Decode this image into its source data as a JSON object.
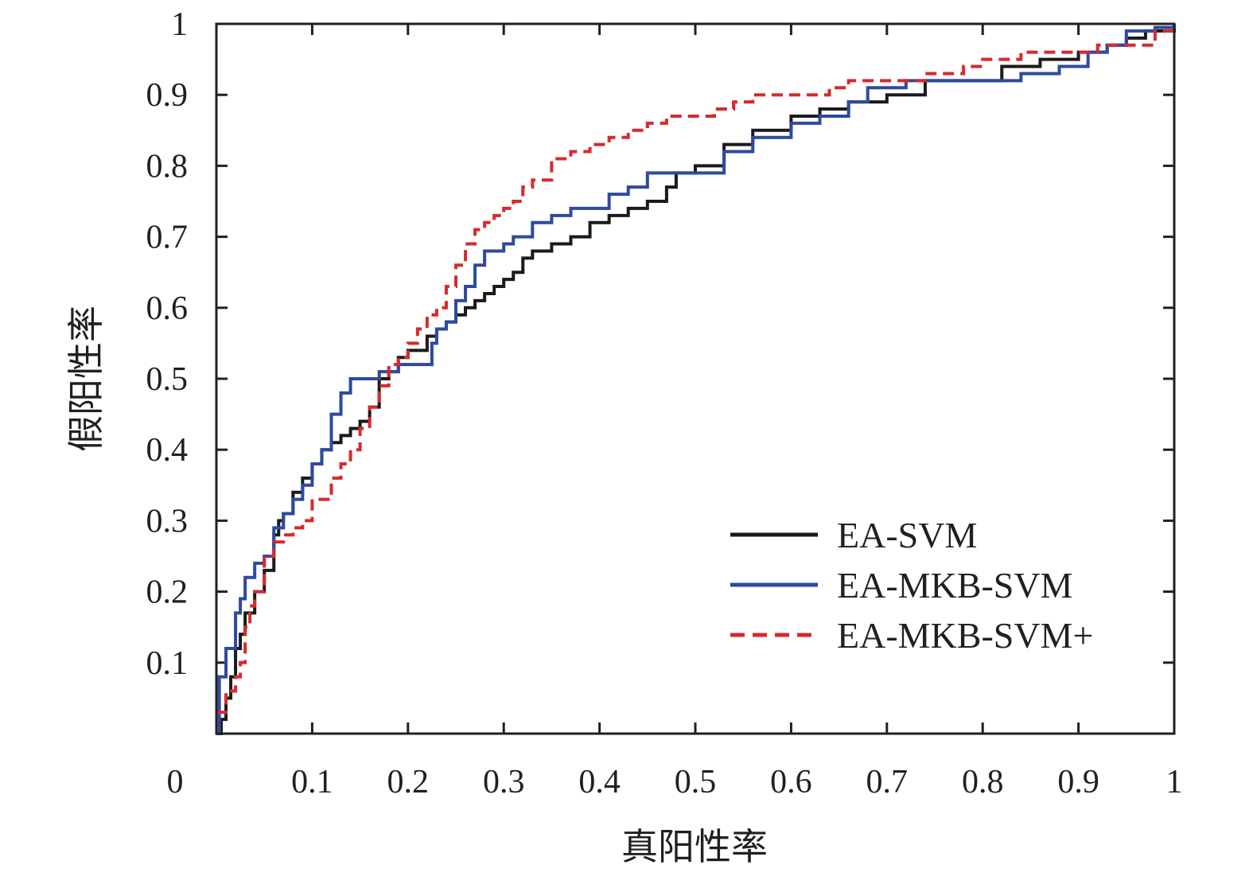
{
  "chart_data": {
    "type": "line",
    "xlabel": "真阳性率",
    "ylabel": "假阳性率",
    "xlim": [
      0,
      1
    ],
    "ylim": [
      0,
      1
    ],
    "x_ticks": [
      "0",
      "0.1",
      "0.2",
      "0.3",
      "0.4",
      "0.5",
      "0.6",
      "0.7",
      "0.8",
      "0.9",
      "1"
    ],
    "y_ticks": [
      "0.1",
      "0.2",
      "0.3",
      "0.4",
      "0.5",
      "0.6",
      "0.7",
      "0.8",
      "0.9",
      "1"
    ],
    "grid": false,
    "legend_position": "bottom-right",
    "series": [
      {
        "name": "EA-SVM",
        "color": "#1a1a1a",
        "dash": "solid",
        "points": [
          [
            0,
            0
          ],
          [
            0.005,
            0.02
          ],
          [
            0.01,
            0.05
          ],
          [
            0.015,
            0.08
          ],
          [
            0.02,
            0.12
          ],
          [
            0.025,
            0.14
          ],
          [
            0.03,
            0.17
          ],
          [
            0.04,
            0.2
          ],
          [
            0.05,
            0.23
          ],
          [
            0.06,
            0.28
          ],
          [
            0.065,
            0.3
          ],
          [
            0.07,
            0.31
          ],
          [
            0.08,
            0.34
          ],
          [
            0.09,
            0.36
          ],
          [
            0.1,
            0.38
          ],
          [
            0.11,
            0.4
          ],
          [
            0.12,
            0.41
          ],
          [
            0.13,
            0.42
          ],
          [
            0.14,
            0.43
          ],
          [
            0.15,
            0.44
          ],
          [
            0.16,
            0.46
          ],
          [
            0.17,
            0.5
          ],
          [
            0.18,
            0.51
          ],
          [
            0.19,
            0.53
          ],
          [
            0.2,
            0.54
          ],
          [
            0.22,
            0.56
          ],
          [
            0.23,
            0.57
          ],
          [
            0.24,
            0.58
          ],
          [
            0.25,
            0.59
          ],
          [
            0.26,
            0.6
          ],
          [
            0.27,
            0.61
          ],
          [
            0.28,
            0.62
          ],
          [
            0.29,
            0.63
          ],
          [
            0.3,
            0.64
          ],
          [
            0.31,
            0.65
          ],
          [
            0.32,
            0.67
          ],
          [
            0.33,
            0.68
          ],
          [
            0.35,
            0.69
          ],
          [
            0.37,
            0.7
          ],
          [
            0.39,
            0.72
          ],
          [
            0.41,
            0.73
          ],
          [
            0.43,
            0.74
          ],
          [
            0.45,
            0.75
          ],
          [
            0.47,
            0.77
          ],
          [
            0.48,
            0.79
          ],
          [
            0.5,
            0.8
          ],
          [
            0.53,
            0.83
          ],
          [
            0.56,
            0.85
          ],
          [
            0.6,
            0.87
          ],
          [
            0.63,
            0.88
          ],
          [
            0.66,
            0.89
          ],
          [
            0.7,
            0.9
          ],
          [
            0.74,
            0.92
          ],
          [
            0.78,
            0.92
          ],
          [
            0.82,
            0.94
          ],
          [
            0.86,
            0.95
          ],
          [
            0.9,
            0.96
          ],
          [
            0.93,
            0.97
          ],
          [
            0.95,
            0.98
          ],
          [
            0.97,
            0.99
          ],
          [
            1.0,
            1.0
          ]
        ]
      },
      {
        "name": "EA-MKB-SVM",
        "color": "#2e4a9e",
        "dash": "solid",
        "points": [
          [
            0,
            0
          ],
          [
            0.003,
            0.08
          ],
          [
            0.01,
            0.12
          ],
          [
            0.02,
            0.17
          ],
          [
            0.025,
            0.19
          ],
          [
            0.03,
            0.22
          ],
          [
            0.04,
            0.24
          ],
          [
            0.05,
            0.25
          ],
          [
            0.06,
            0.29
          ],
          [
            0.07,
            0.31
          ],
          [
            0.08,
            0.33
          ],
          [
            0.09,
            0.35
          ],
          [
            0.1,
            0.38
          ],
          [
            0.11,
            0.4
          ],
          [
            0.12,
            0.45
          ],
          [
            0.13,
            0.48
          ],
          [
            0.14,
            0.5
          ],
          [
            0.16,
            0.5
          ],
          [
            0.17,
            0.51
          ],
          [
            0.18,
            0.51
          ],
          [
            0.19,
            0.52
          ],
          [
            0.2,
            0.52
          ],
          [
            0.21,
            0.52
          ],
          [
            0.22,
            0.52
          ],
          [
            0.225,
            0.55
          ],
          [
            0.23,
            0.57
          ],
          [
            0.24,
            0.58
          ],
          [
            0.25,
            0.61
          ],
          [
            0.26,
            0.63
          ],
          [
            0.27,
            0.66
          ],
          [
            0.28,
            0.68
          ],
          [
            0.29,
            0.68
          ],
          [
            0.3,
            0.69
          ],
          [
            0.31,
            0.7
          ],
          [
            0.33,
            0.72
          ],
          [
            0.35,
            0.73
          ],
          [
            0.37,
            0.74
          ],
          [
            0.39,
            0.74
          ],
          [
            0.41,
            0.76
          ],
          [
            0.43,
            0.77
          ],
          [
            0.45,
            0.79
          ],
          [
            0.48,
            0.79
          ],
          [
            0.5,
            0.79
          ],
          [
            0.53,
            0.82
          ],
          [
            0.56,
            0.84
          ],
          [
            0.6,
            0.86
          ],
          [
            0.63,
            0.87
          ],
          [
            0.66,
            0.89
          ],
          [
            0.68,
            0.91
          ],
          [
            0.72,
            0.92
          ],
          [
            0.76,
            0.92
          ],
          [
            0.8,
            0.92
          ],
          [
            0.84,
            0.93
          ],
          [
            0.88,
            0.94
          ],
          [
            0.91,
            0.96
          ],
          [
            0.93,
            0.97
          ],
          [
            0.95,
            0.99
          ],
          [
            0.98,
            0.995
          ],
          [
            1.0,
            1.0
          ]
        ]
      },
      {
        "name": "EA-MKB-SVM+",
        "color": "#d62a2e",
        "dash": "dashed",
        "points": [
          [
            0,
            0.03
          ],
          [
            0.01,
            0.06
          ],
          [
            0.02,
            0.08
          ],
          [
            0.025,
            0.1
          ],
          [
            0.03,
            0.15
          ],
          [
            0.035,
            0.18
          ],
          [
            0.04,
            0.2
          ],
          [
            0.05,
            0.25
          ],
          [
            0.06,
            0.27
          ],
          [
            0.07,
            0.28
          ],
          [
            0.08,
            0.29
          ],
          [
            0.09,
            0.3
          ],
          [
            0.1,
            0.33
          ],
          [
            0.11,
            0.33
          ],
          [
            0.12,
            0.36
          ],
          [
            0.13,
            0.38
          ],
          [
            0.14,
            0.4
          ],
          [
            0.15,
            0.43
          ],
          [
            0.16,
            0.46
          ],
          [
            0.17,
            0.49
          ],
          [
            0.18,
            0.52
          ],
          [
            0.19,
            0.53
          ],
          [
            0.2,
            0.55
          ],
          [
            0.21,
            0.57
          ],
          [
            0.22,
            0.59
          ],
          [
            0.23,
            0.6
          ],
          [
            0.24,
            0.63
          ],
          [
            0.25,
            0.66
          ],
          [
            0.26,
            0.69
          ],
          [
            0.27,
            0.71
          ],
          [
            0.28,
            0.72
          ],
          [
            0.29,
            0.73
          ],
          [
            0.3,
            0.74
          ],
          [
            0.31,
            0.75
          ],
          [
            0.32,
            0.77
          ],
          [
            0.33,
            0.78
          ],
          [
            0.35,
            0.81
          ],
          [
            0.37,
            0.82
          ],
          [
            0.39,
            0.83
          ],
          [
            0.41,
            0.84
          ],
          [
            0.43,
            0.85
          ],
          [
            0.45,
            0.86
          ],
          [
            0.47,
            0.87
          ],
          [
            0.5,
            0.87
          ],
          [
            0.52,
            0.88
          ],
          [
            0.54,
            0.89
          ],
          [
            0.56,
            0.9
          ],
          [
            0.6,
            0.9
          ],
          [
            0.64,
            0.91
          ],
          [
            0.66,
            0.92
          ],
          [
            0.7,
            0.92
          ],
          [
            0.74,
            0.93
          ],
          [
            0.78,
            0.94
          ],
          [
            0.8,
            0.95
          ],
          [
            0.84,
            0.96
          ],
          [
            0.88,
            0.96
          ],
          [
            0.92,
            0.97
          ],
          [
            0.96,
            0.97
          ],
          [
            0.98,
            0.99
          ],
          [
            1.0,
            1.0
          ]
        ]
      }
    ]
  }
}
